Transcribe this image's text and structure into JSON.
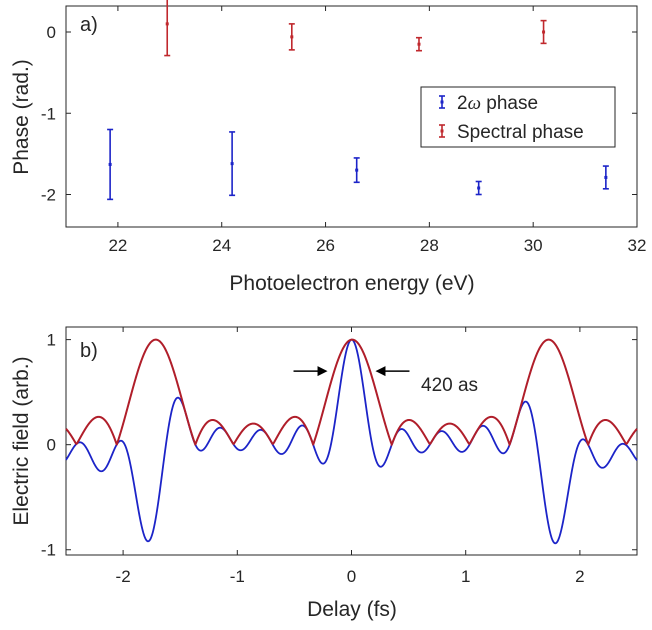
{
  "chart_data": [
    {
      "type": "scatter",
      "panel_label": "a)",
      "xlabel": "Photoelectron energy (eV)",
      "ylabel": "Phase (rad.)",
      "xlim": [
        21,
        32
      ],
      "ylim": [
        -2.4,
        0.32
      ],
      "xticks": [
        "22",
        "24",
        "26",
        "28",
        "30",
        "32"
      ],
      "yticks": [
        "0",
        "-1",
        "-2"
      ],
      "legend": {
        "position": "center-right"
      },
      "series": [
        {
          "name": "2ω phase",
          "label_prefix": "2",
          "label_symbol": "ω",
          "label_suffix": " phase",
          "color": "#1c24c8",
          "points": [
            {
              "x": 21.85,
              "y": -1.63,
              "err": 0.43
            },
            {
              "x": 24.2,
              "y": -1.62,
              "err": 0.39
            },
            {
              "x": 26.6,
              "y": -1.7,
              "err": 0.15
            },
            {
              "x": 28.95,
              "y": -1.92,
              "err": 0.08
            },
            {
              "x": 31.4,
              "y": -1.79,
              "err": 0.14
            }
          ]
        },
        {
          "name": "Spectral phase",
          "color": "#c0282d",
          "points": [
            {
              "x": 22.95,
              "y": 0.1,
              "err": 0.39
            },
            {
              "x": 25.35,
              "y": -0.06,
              "err": 0.16
            },
            {
              "x": 27.8,
              "y": -0.15,
              "err": 0.08
            },
            {
              "x": 30.2,
              "y": 0.0,
              "err": 0.14
            }
          ]
        }
      ]
    },
    {
      "type": "line",
      "panel_label": "b)",
      "xlabel": "Delay (fs)",
      "ylabel": "Electric field (arb.)",
      "xlim": [
        -2.5,
        2.5
      ],
      "ylim": [
        -1.05,
        1.12
      ],
      "xticks": [
        "-2",
        "-1",
        "0",
        "1",
        "2"
      ],
      "yticks": [
        "1",
        "0",
        "-1"
      ],
      "annotation": {
        "text": "420 as",
        "width_fs": 0.42
      },
      "pulse_period_fs": 1.72,
      "harmonic_phases_rad": [
        -1.63,
        -1.62,
        -1.7,
        -1.92,
        -1.79
      ],
      "carrier_frequency_per_fs": 8.7,
      "series": [
        {
          "name": "",
          "role": "field",
          "color": "#1c24c8"
        },
        {
          "name": "",
          "role": "envelope",
          "color": "#b01e2a"
        }
      ]
    }
  ]
}
